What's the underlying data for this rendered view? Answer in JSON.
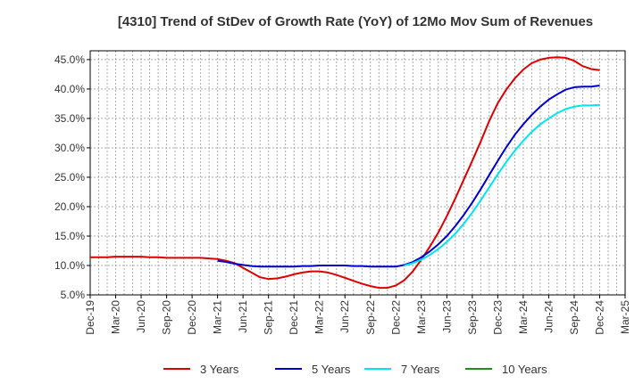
{
  "chart_data": {
    "type": "line",
    "title": "[4310]  Trend of StDev of Growth Rate (YoY) of 12Mo Mov Sum of Revenues",
    "xlabel": "",
    "ylabel": "",
    "ylim": [
      5.0,
      46.5
    ],
    "y_ticks": [
      5.0,
      10.0,
      15.0,
      20.0,
      25.0,
      30.0,
      35.0,
      40.0,
      45.0
    ],
    "y_tick_labels": [
      "5.0%",
      "10.0%",
      "15.0%",
      "20.0%",
      "25.0%",
      "30.0%",
      "35.0%",
      "40.0%",
      "45.0%"
    ],
    "x_tick_labels": [
      "Dec-19",
      "Mar-20",
      "Jun-20",
      "Sep-20",
      "Dec-20",
      "Mar-21",
      "Jun-21",
      "Sep-21",
      "Dec-21",
      "Mar-22",
      "Jun-22",
      "Sep-22",
      "Dec-22",
      "Mar-23",
      "Jun-23",
      "Sep-23",
      "Dec-23",
      "Mar-24",
      "Jun-24",
      "Sep-24",
      "Dec-24",
      "Mar-25"
    ],
    "grid": true,
    "legend_position": "bottom",
    "series": [
      {
        "name": "3 Years",
        "color": "#dd0000",
        "start_index": 0,
        "values": [
          11.4,
          11.4,
          11.4,
          11.5,
          11.5,
          11.5,
          11.5,
          11.4,
          11.4,
          11.3,
          11.3,
          11.3,
          11.3,
          11.3,
          11.2,
          11.1,
          10.8,
          10.4,
          9.6,
          8.8,
          8.0,
          7.7,
          7.8,
          8.1,
          8.5,
          8.8,
          9.0,
          9.0,
          8.8,
          8.4,
          7.9,
          7.4,
          6.9,
          6.5,
          6.2,
          6.2,
          6.6,
          7.5,
          9.0,
          11.0,
          13.2,
          15.6,
          18.4,
          21.4,
          24.6,
          27.8,
          31.1,
          34.6,
          37.6,
          39.9,
          41.8,
          43.3,
          44.4,
          45.0,
          45.3,
          45.4,
          45.3,
          44.8,
          43.9,
          43.4,
          43.2
        ]
      },
      {
        "name": "5 Years",
        "color": "#0000cc",
        "start_index": 15,
        "values": [
          10.8,
          10.6,
          10.3,
          10.1,
          9.9,
          9.8,
          9.8,
          9.8,
          9.8,
          9.8,
          9.9,
          9.9,
          10.0,
          10.0,
          10.0,
          10.0,
          9.9,
          9.9,
          9.8,
          9.8,
          9.8,
          9.8,
          10.1,
          10.6,
          11.4,
          12.4,
          13.6,
          15.0,
          16.7,
          18.6,
          20.7,
          23.0,
          25.4,
          27.8,
          30.1,
          32.2,
          34.0,
          35.6,
          37.0,
          38.2,
          39.1,
          39.9,
          40.3,
          40.4,
          40.4,
          40.6
        ]
      },
      {
        "name": "7 Years",
        "color": "#00e5ee",
        "start_index": 37,
        "values": [
          10.0,
          10.4,
          11.0,
          11.8,
          12.8,
          14.0,
          15.4,
          17.1,
          19.0,
          21.1,
          23.3,
          25.5,
          27.6,
          29.5,
          31.2,
          32.7,
          34.0,
          35.0,
          35.9,
          36.6,
          37.0,
          37.2,
          37.2,
          37.3
        ]
      },
      {
        "name": "10 Years",
        "color": "#228b22",
        "start_index": 0,
        "values": []
      }
    ]
  }
}
